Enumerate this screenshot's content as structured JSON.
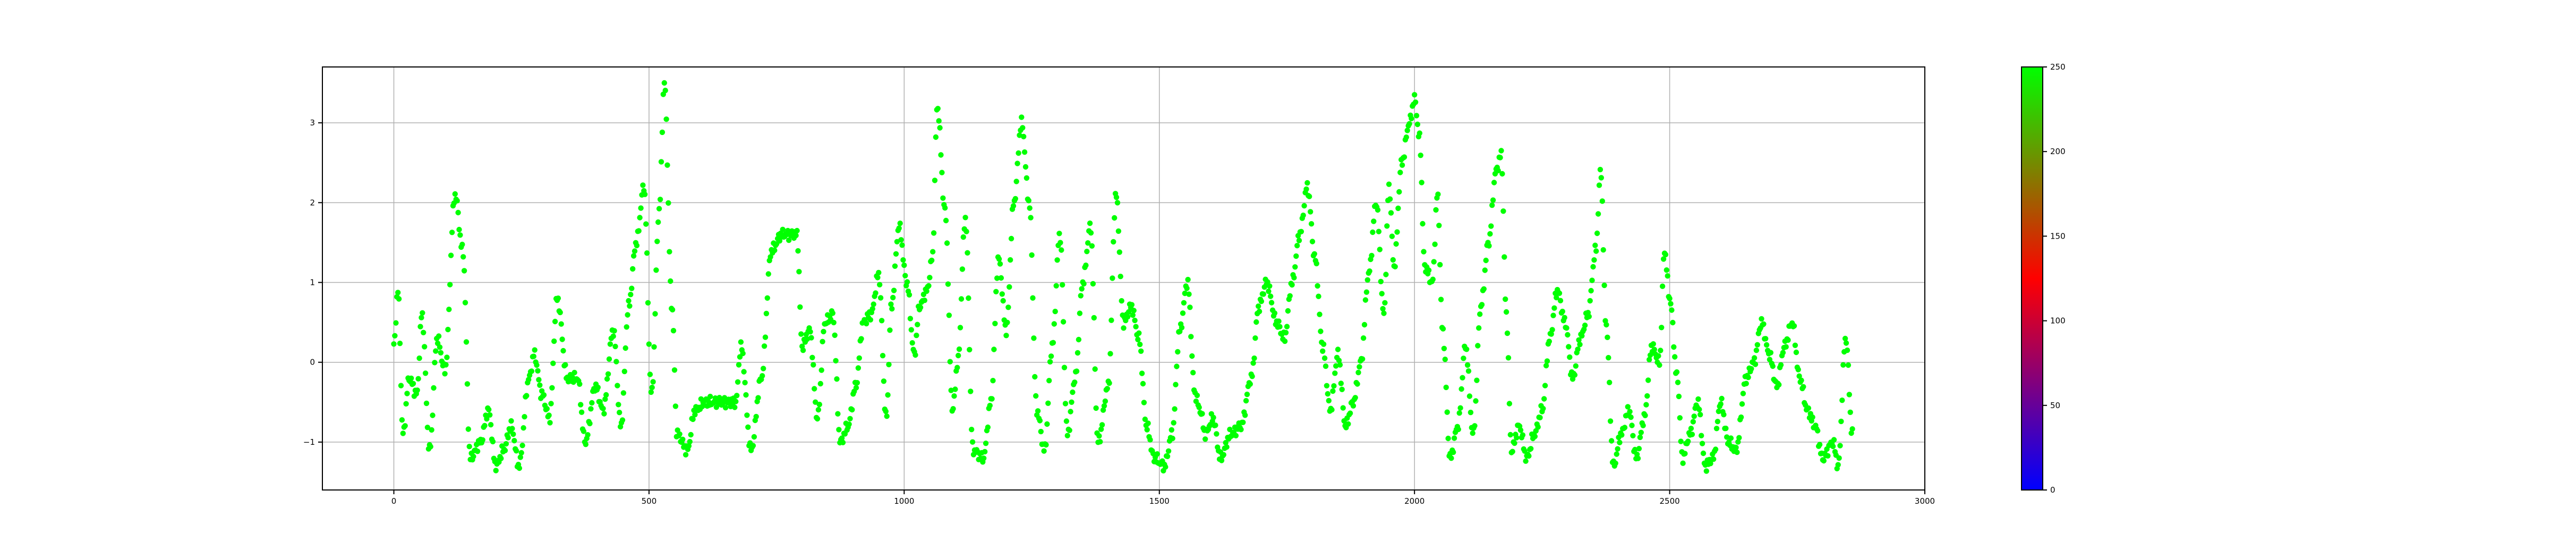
{
  "chart_data": {
    "type": "scatter",
    "title": "",
    "xlabel": "",
    "ylabel": "",
    "xlim": [
      -140,
      3000
    ],
    "ylim": [
      -1.6,
      3.7
    ],
    "grid": true,
    "x_ticks": [
      0,
      500,
      1000,
      1500,
      2000,
      2500,
      3000
    ],
    "y_ticks": [
      -1,
      0,
      1,
      2,
      3
    ],
    "point_color": "#00ff00",
    "series": [
      {
        "x_start": 0,
        "x_step": 2,
        "y_anchors": [
          [
            0,
            0.2
          ],
          [
            8,
            0.9
          ],
          [
            18,
            -0.9
          ],
          [
            30,
            -0.2
          ],
          [
            45,
            -0.4
          ],
          [
            55,
            0.6
          ],
          [
            70,
            -1.1
          ],
          [
            85,
            0.3
          ],
          [
            100,
            -0.1
          ],
          [
            120,
            2.1
          ],
          [
            135,
            1.4
          ],
          [
            150,
            -1.2
          ],
          [
            170,
            -1.0
          ],
          [
            185,
            -0.6
          ],
          [
            200,
            -1.3
          ],
          [
            215,
            -1.1
          ],
          [
            230,
            -0.8
          ],
          [
            245,
            -1.3
          ],
          [
            265,
            -0.2
          ],
          [
            275,
            0.1
          ],
          [
            290,
            -0.4
          ],
          [
            305,
            -0.7
          ],
          [
            320,
            0.8
          ],
          [
            340,
            -0.2
          ],
          [
            360,
            -0.2
          ],
          [
            375,
            -1.0
          ],
          [
            395,
            -0.3
          ],
          [
            410,
            -0.6
          ],
          [
            430,
            0.4
          ],
          [
            445,
            -0.8
          ],
          [
            460,
            0.7
          ],
          [
            475,
            1.5
          ],
          [
            490,
            2.2
          ],
          [
            505,
            -0.4
          ],
          [
            520,
            1.9
          ],
          [
            530,
            3.5
          ],
          [
            545,
            0.7
          ],
          [
            555,
            -0.9
          ],
          [
            575,
            -1.1
          ],
          [
            590,
            -0.6
          ],
          [
            610,
            -0.5
          ],
          [
            670,
            -0.5
          ],
          [
            680,
            0.2
          ],
          [
            700,
            -1.1
          ],
          [
            720,
            -0.2
          ],
          [
            740,
            1.4
          ],
          [
            760,
            1.6
          ],
          [
            790,
            1.6
          ],
          [
            800,
            0.2
          ],
          [
            815,
            0.4
          ],
          [
            830,
            -0.7
          ],
          [
            845,
            0.5
          ],
          [
            860,
            0.6
          ],
          [
            875,
            -1.0
          ],
          [
            890,
            -0.8
          ],
          [
            905,
            -0.3
          ],
          [
            920,
            0.5
          ],
          [
            935,
            0.6
          ],
          [
            950,
            1.1
          ],
          [
            965,
            -0.7
          ],
          [
            975,
            0.7
          ],
          [
            990,
            1.7
          ],
          [
            1005,
            1.0
          ],
          [
            1020,
            0.1
          ],
          [
            1030,
            0.7
          ],
          [
            1045,
            0.9
          ],
          [
            1055,
            1.3
          ],
          [
            1065,
            3.2
          ],
          [
            1080,
            1.9
          ],
          [
            1095,
            -0.6
          ],
          [
            1105,
            0.0
          ],
          [
            1120,
            1.8
          ],
          [
            1135,
            -1.1
          ],
          [
            1155,
            -1.2
          ],
          [
            1170,
            -0.5
          ],
          [
            1185,
            1.3
          ],
          [
            1200,
            0.4
          ],
          [
            1215,
            2.0
          ],
          [
            1230,
            3.0
          ],
          [
            1245,
            2.0
          ],
          [
            1260,
            -0.6
          ],
          [
            1275,
            -1.1
          ],
          [
            1290,
            0.2
          ],
          [
            1305,
            1.6
          ],
          [
            1320,
            -0.9
          ],
          [
            1335,
            -0.2
          ],
          [
            1350,
            1.0
          ],
          [
            1365,
            1.7
          ],
          [
            1380,
            -1.0
          ],
          [
            1400,
            -0.3
          ],
          [
            1415,
            2.1
          ],
          [
            1430,
            0.5
          ],
          [
            1445,
            0.7
          ],
          [
            1460,
            0.3
          ],
          [
            1475,
            -0.8
          ],
          [
            1490,
            -1.2
          ],
          [
            1510,
            -1.3
          ],
          [
            1525,
            -0.9
          ],
          [
            1540,
            0.4
          ],
          [
            1555,
            1.0
          ],
          [
            1570,
            -0.4
          ],
          [
            1580,
            -0.6
          ],
          [
            1590,
            -0.9
          ],
          [
            1605,
            -0.7
          ],
          [
            1620,
            -1.2
          ],
          [
            1640,
            -0.9
          ],
          [
            1660,
            -0.8
          ],
          [
            1680,
            -0.2
          ],
          [
            1695,
            0.7
          ],
          [
            1710,
            1.0
          ],
          [
            1730,
            0.5
          ],
          [
            1745,
            0.3
          ],
          [
            1760,
            1.0
          ],
          [
            1775,
            1.6
          ],
          [
            1790,
            2.2
          ],
          [
            1805,
            1.3
          ],
          [
            1820,
            0.2
          ],
          [
            1835,
            -0.6
          ],
          [
            1850,
            0.1
          ],
          [
            1865,
            -0.8
          ],
          [
            1880,
            -0.5
          ],
          [
            1895,
            0.0
          ],
          [
            1910,
            1.1
          ],
          [
            1925,
            2.0
          ],
          [
            1940,
            0.6
          ],
          [
            1950,
            2.2
          ],
          [
            1960,
            1.2
          ],
          [
            1975,
            2.5
          ],
          [
            1990,
            3.0
          ],
          [
            2000,
            3.3
          ],
          [
            2010,
            2.8
          ],
          [
            2020,
            1.2
          ],
          [
            2035,
            1.0
          ],
          [
            2045,
            2.1
          ],
          [
            2055,
            0.4
          ],
          [
            2070,
            -1.2
          ],
          [
            2085,
            -0.8
          ],
          [
            2100,
            0.2
          ],
          [
            2115,
            -0.9
          ],
          [
            2130,
            0.7
          ],
          [
            2145,
            1.5
          ],
          [
            2160,
            2.4
          ],
          [
            2170,
            2.6
          ],
          [
            2180,
            0.6
          ],
          [
            2190,
            -1.1
          ],
          [
            2205,
            -0.8
          ],
          [
            2220,
            -1.2
          ],
          [
            2235,
            -0.9
          ],
          [
            2250,
            -0.6
          ],
          [
            2265,
            0.3
          ],
          [
            2280,
            0.9
          ],
          [
            2295,
            0.5
          ],
          [
            2310,
            -0.2
          ],
          [
            2325,
            0.3
          ],
          [
            2340,
            0.6
          ],
          [
            2355,
            1.4
          ],
          [
            2365,
            2.4
          ],
          [
            2375,
            0.5
          ],
          [
            2390,
            -1.3
          ],
          [
            2405,
            -0.9
          ],
          [
            2420,
            -0.6
          ],
          [
            2435,
            -1.2
          ],
          [
            2450,
            -0.7
          ],
          [
            2465,
            0.2
          ],
          [
            2480,
            0.0
          ],
          [
            2490,
            1.4
          ],
          [
            2500,
            0.8
          ],
          [
            2515,
            -0.2
          ],
          [
            2525,
            -1.2
          ],
          [
            2540,
            -0.9
          ],
          [
            2555,
            -0.5
          ],
          [
            2570,
            -1.3
          ],
          [
            2585,
            -1.2
          ],
          [
            2600,
            -0.5
          ],
          [
            2615,
            -1.0
          ],
          [
            2630,
            -1.1
          ],
          [
            2650,
            -0.2
          ],
          [
            2665,
            0.0
          ],
          [
            2680,
            0.5
          ],
          [
            2695,
            0.1
          ],
          [
            2710,
            -0.3
          ],
          [
            2725,
            0.2
          ],
          [
            2740,
            0.5
          ],
          [
            2755,
            -0.2
          ],
          [
            2770,
            -0.6
          ],
          [
            2785,
            -0.8
          ],
          [
            2800,
            -1.2
          ],
          [
            2820,
            -1.0
          ],
          [
            2830,
            -1.3
          ],
          [
            2845,
            0.3
          ],
          [
            2858,
            -0.9
          ]
        ]
      }
    ],
    "colorbar": {
      "ticks": [
        "0",
        "50",
        "100",
        "150",
        "200",
        "250"
      ],
      "range": [
        0,
        250
      ],
      "colors": [
        "#0000ff",
        "#ff0000",
        "#00ff00"
      ]
    }
  }
}
